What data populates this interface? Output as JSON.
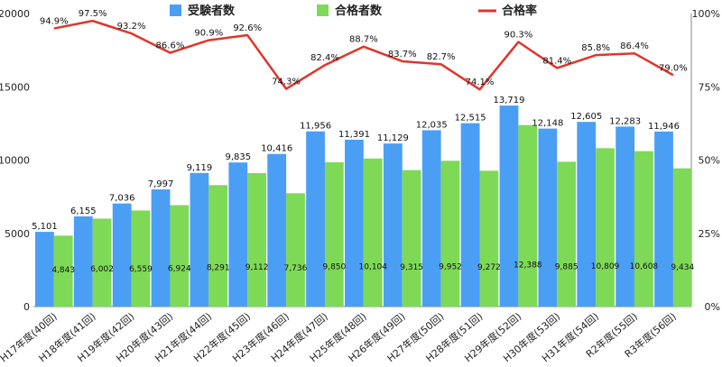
{
  "chart_data": {
    "type": "bar",
    "categories": [
      "H17年度(40回)",
      "H18年度(41回)",
      "H19年度(42回)",
      "H20年度(43回)",
      "H21年度(44回)",
      "H22年度(45回)",
      "H23年度(46回)",
      "H24年度(47回)",
      "H25年度(48回)",
      "H26年度(49回)",
      "H27年度(50回)",
      "H28年度(51回)",
      "H29年度(52回)",
      "H30年度(53回)",
      "H31年度(54回)",
      "R2年度(55回)",
      "R3年度(56回)"
    ],
    "series": [
      {
        "name": "受験者数",
        "kind": "bar",
        "axis": "left",
        "color": "#4a9ff5",
        "values": [
          5101,
          6155,
          7036,
          7997,
          9119,
          9835,
          10416,
          11956,
          11391,
          11129,
          12035,
          12515,
          13719,
          12148,
          12605,
          12283,
          11946
        ],
        "labels": [
          "5,101",
          "6,155",
          "7,036",
          "7,997",
          "9,119",
          "9,835",
          "10,416",
          "11,956",
          "11,391",
          "11,129",
          "12,035",
          "12,515",
          "13,719",
          "12,148",
          "12,605",
          "12,283",
          "11,946"
        ]
      },
      {
        "name": "合格者数",
        "kind": "bar",
        "axis": "left",
        "color": "#7ed957",
        "values": [
          4843,
          6002,
          6559,
          6924,
          8291,
          9112,
          7736,
          9850,
          10104,
          9315,
          9952,
          9272,
          12388,
          9885,
          10809,
          10608,
          9434
        ],
        "labels": [
          "4,843",
          "6,002",
          "6,559",
          "6,924",
          "8,291",
          "9,112",
          "7,736",
          "9,850",
          "10,104",
          "9,315",
          "9,952",
          "9,272",
          "12,388",
          "9,885",
          "10,809",
          "10,608",
          "9,434"
        ]
      },
      {
        "name": "合格率",
        "kind": "line",
        "axis": "right",
        "color": "#e0352b",
        "values": [
          94.9,
          97.5,
          93.2,
          86.6,
          90.9,
          92.6,
          74.3,
          82.4,
          88.7,
          83.7,
          82.7,
          74.1,
          90.3,
          81.4,
          85.8,
          86.4,
          79.0
        ],
        "labels": [
          "94.9%",
          "97.5%",
          "93.2%",
          "86.6%",
          "90.9%",
          "92.6%",
          "74.3%",
          "82.4%",
          "88.7%",
          "83.7%",
          "82.7%",
          "74.1%",
          "90.3%",
          "81.4%",
          "85.8%",
          "86.4%",
          "79.0%"
        ]
      }
    ],
    "ylim": [
      0,
      20000
    ],
    "yticks": [
      "0",
      "5000",
      "10000",
      "15000",
      "20000"
    ],
    "y2lim": [
      0,
      100
    ],
    "y2ticks": [
      "0%",
      "25%",
      "50%",
      "75%",
      "100%"
    ],
    "legend_position": "top",
    "grid": false
  }
}
